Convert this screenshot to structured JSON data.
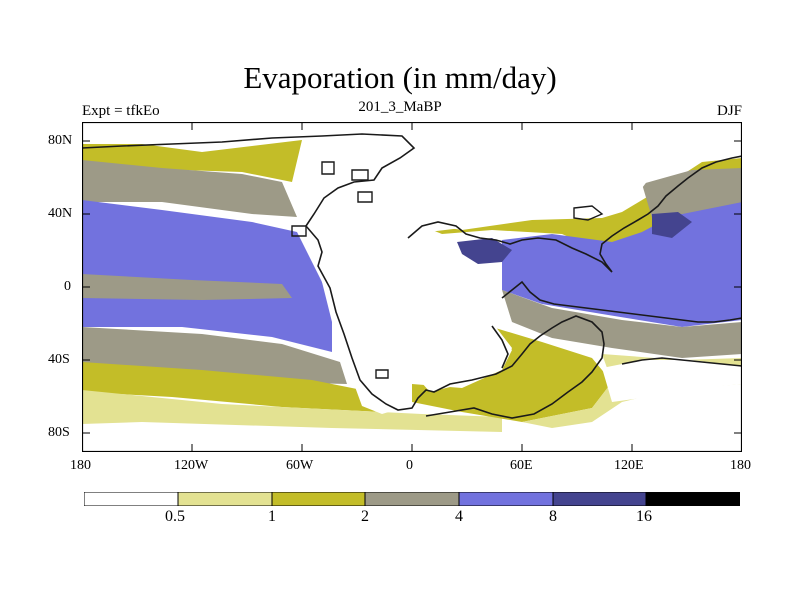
{
  "title": "Evaporation (in mm/day)",
  "subtitle": "201_3_MaBP",
  "left_label": "Expt = tfkEo",
  "right_label": "DJF",
  "colors": {
    "c0": "#ffffff",
    "c1": "#e3e292",
    "c2": "#c3bd28",
    "c3": "#9d9a87",
    "c4": "#7272de",
    "c5": "#44448f",
    "c6": "#000000",
    "coast": "#1a1a1a"
  },
  "axes": {
    "x_ticks": [
      "180",
      "120W",
      "60W",
      "0",
      "60E",
      "120E",
      "180"
    ],
    "y_ticks": [
      "80N",
      "40N",
      "0",
      "40S",
      "80S"
    ]
  },
  "colorbar": {
    "labels": [
      "0.5",
      "1",
      "2",
      "4",
      "8",
      "16"
    ]
  }
}
